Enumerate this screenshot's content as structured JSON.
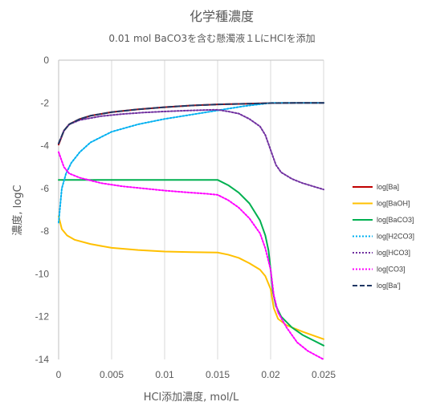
{
  "chart_data": {
    "type": "line",
    "title": "化学種濃度",
    "subtitle": "0.01 mol BaCO3を含む懸濁液１LにHClを添加",
    "xlabel": "HCl添加濃度, mol/L",
    "ylabel": "濃度, logC",
    "xlim": [
      0,
      0.025
    ],
    "ylim": [
      -14,
      0
    ],
    "x_ticks": [
      "0",
      "0.005",
      "0.01",
      "0.015",
      "0.02",
      "0.025"
    ],
    "y_ticks": [
      "0",
      "-2",
      "-4",
      "-6",
      "-8",
      "-10",
      "-12",
      "-14"
    ],
    "grid": "vertical",
    "legend_position": "right",
    "series": [
      {
        "name": "log[Ba]",
        "color": "#c00000",
        "dash": "solid",
        "points": [
          [
            0,
            -3.95
          ],
          [
            0.0005,
            -3.3
          ],
          [
            0.001,
            -3.0
          ],
          [
            0.002,
            -2.75
          ],
          [
            0.003,
            -2.6
          ],
          [
            0.005,
            -2.43
          ],
          [
            0.0075,
            -2.3
          ],
          [
            0.01,
            -2.2
          ],
          [
            0.0125,
            -2.12
          ],
          [
            0.015,
            -2.07
          ],
          [
            0.0175,
            -2.04
          ],
          [
            0.02,
            -2.01
          ],
          [
            0.0225,
            -2.0
          ],
          [
            0.025,
            -2.0
          ]
        ]
      },
      {
        "name": "log[BaOH]",
        "color": "#ffc000",
        "dash": "solid",
        "points": [
          [
            0,
            -7.3
          ],
          [
            0.0003,
            -7.9
          ],
          [
            0.0008,
            -8.2
          ],
          [
            0.0015,
            -8.4
          ],
          [
            0.003,
            -8.6
          ],
          [
            0.005,
            -8.78
          ],
          [
            0.0075,
            -8.88
          ],
          [
            0.01,
            -8.95
          ],
          [
            0.0125,
            -8.98
          ],
          [
            0.015,
            -9.0
          ],
          [
            0.016,
            -9.1
          ],
          [
            0.017,
            -9.25
          ],
          [
            0.018,
            -9.5
          ],
          [
            0.019,
            -9.8
          ],
          [
            0.0195,
            -10.1
          ],
          [
            0.02,
            -10.7
          ],
          [
            0.0203,
            -11.6
          ],
          [
            0.0207,
            -12.1
          ],
          [
            0.0215,
            -12.4
          ],
          [
            0.023,
            -12.7
          ],
          [
            0.025,
            -13.05
          ]
        ]
      },
      {
        "name": "log[BaCO3]",
        "color": "#00b050",
        "dash": "solid",
        "points": [
          [
            0,
            -5.6
          ],
          [
            0.005,
            -5.6
          ],
          [
            0.01,
            -5.6
          ],
          [
            0.015,
            -5.6
          ],
          [
            0.016,
            -5.85
          ],
          [
            0.017,
            -6.2
          ],
          [
            0.018,
            -6.7
          ],
          [
            0.019,
            -7.5
          ],
          [
            0.0195,
            -8.2
          ],
          [
            0.0198,
            -8.9
          ],
          [
            0.02,
            -9.8
          ],
          [
            0.0202,
            -10.8
          ],
          [
            0.0205,
            -11.5
          ],
          [
            0.021,
            -12.0
          ],
          [
            0.022,
            -12.5
          ],
          [
            0.023,
            -12.85
          ],
          [
            0.024,
            -13.1
          ],
          [
            0.025,
            -13.35
          ]
        ]
      },
      {
        "name": "log[H2CO3]",
        "color": "#00b0f0",
        "dash": "2,2",
        "points": [
          [
            0,
            -7.6
          ],
          [
            0.0003,
            -6.0
          ],
          [
            0.0007,
            -5.3
          ],
          [
            0.0012,
            -4.8
          ],
          [
            0.002,
            -4.3
          ],
          [
            0.003,
            -3.85
          ],
          [
            0.005,
            -3.35
          ],
          [
            0.0075,
            -3.0
          ],
          [
            0.01,
            -2.75
          ],
          [
            0.0125,
            -2.55
          ],
          [
            0.015,
            -2.35
          ],
          [
            0.0175,
            -2.15
          ],
          [
            0.02,
            -2.0
          ],
          [
            0.0225,
            -2.0
          ],
          [
            0.025,
            -2.0
          ]
        ]
      },
      {
        "name": "log[HCO3]",
        "color": "#7030a0",
        "dash": "2,2",
        "points": [
          [
            0,
            -3.9
          ],
          [
            0.0005,
            -3.3
          ],
          [
            0.001,
            -3.0
          ],
          [
            0.002,
            -2.8
          ],
          [
            0.004,
            -2.62
          ],
          [
            0.006,
            -2.52
          ],
          [
            0.008,
            -2.45
          ],
          [
            0.01,
            -2.4
          ],
          [
            0.012,
            -2.36
          ],
          [
            0.014,
            -2.33
          ],
          [
            0.015,
            -2.32
          ],
          [
            0.016,
            -2.4
          ],
          [
            0.017,
            -2.5
          ],
          [
            0.018,
            -2.75
          ],
          [
            0.019,
            -3.1
          ],
          [
            0.0195,
            -3.5
          ],
          [
            0.02,
            -4.2
          ],
          [
            0.0205,
            -4.9
          ],
          [
            0.021,
            -5.25
          ],
          [
            0.022,
            -5.55
          ],
          [
            0.023,
            -5.75
          ],
          [
            0.024,
            -5.9
          ],
          [
            0.025,
            -6.05
          ]
        ]
      },
      {
        "name": "log[CO3]",
        "color": "#ff00ff",
        "dash": "2,2",
        "points": [
          [
            0,
            -4.3
          ],
          [
            0.0005,
            -5.0
          ],
          [
            0.001,
            -5.3
          ],
          [
            0.002,
            -5.5
          ],
          [
            0.004,
            -5.75
          ],
          [
            0.006,
            -5.9
          ],
          [
            0.008,
            -6.0
          ],
          [
            0.01,
            -6.1
          ],
          [
            0.012,
            -6.18
          ],
          [
            0.014,
            -6.25
          ],
          [
            0.015,
            -6.3
          ],
          [
            0.016,
            -6.55
          ],
          [
            0.017,
            -6.9
          ],
          [
            0.018,
            -7.4
          ],
          [
            0.019,
            -8.1
          ],
          [
            0.0195,
            -8.8
          ],
          [
            0.02,
            -9.8
          ],
          [
            0.0203,
            -11.0
          ],
          [
            0.0207,
            -11.8
          ],
          [
            0.0215,
            -12.5
          ],
          [
            0.0225,
            -13.2
          ],
          [
            0.0235,
            -13.6
          ],
          [
            0.025,
            -14.0
          ]
        ]
      },
      {
        "name": "log[Ba']",
        "color": "#203864",
        "dash": "6,3",
        "points": [
          [
            0,
            -3.9
          ],
          [
            0.0005,
            -3.3
          ],
          [
            0.001,
            -3.0
          ],
          [
            0.002,
            -2.75
          ],
          [
            0.003,
            -2.6
          ],
          [
            0.005,
            -2.43
          ],
          [
            0.0075,
            -2.3
          ],
          [
            0.01,
            -2.2
          ],
          [
            0.0125,
            -2.12
          ],
          [
            0.015,
            -2.07
          ],
          [
            0.0175,
            -2.04
          ],
          [
            0.02,
            -2.01
          ],
          [
            0.0225,
            -2.0
          ],
          [
            0.025,
            -2.0
          ]
        ]
      }
    ]
  }
}
